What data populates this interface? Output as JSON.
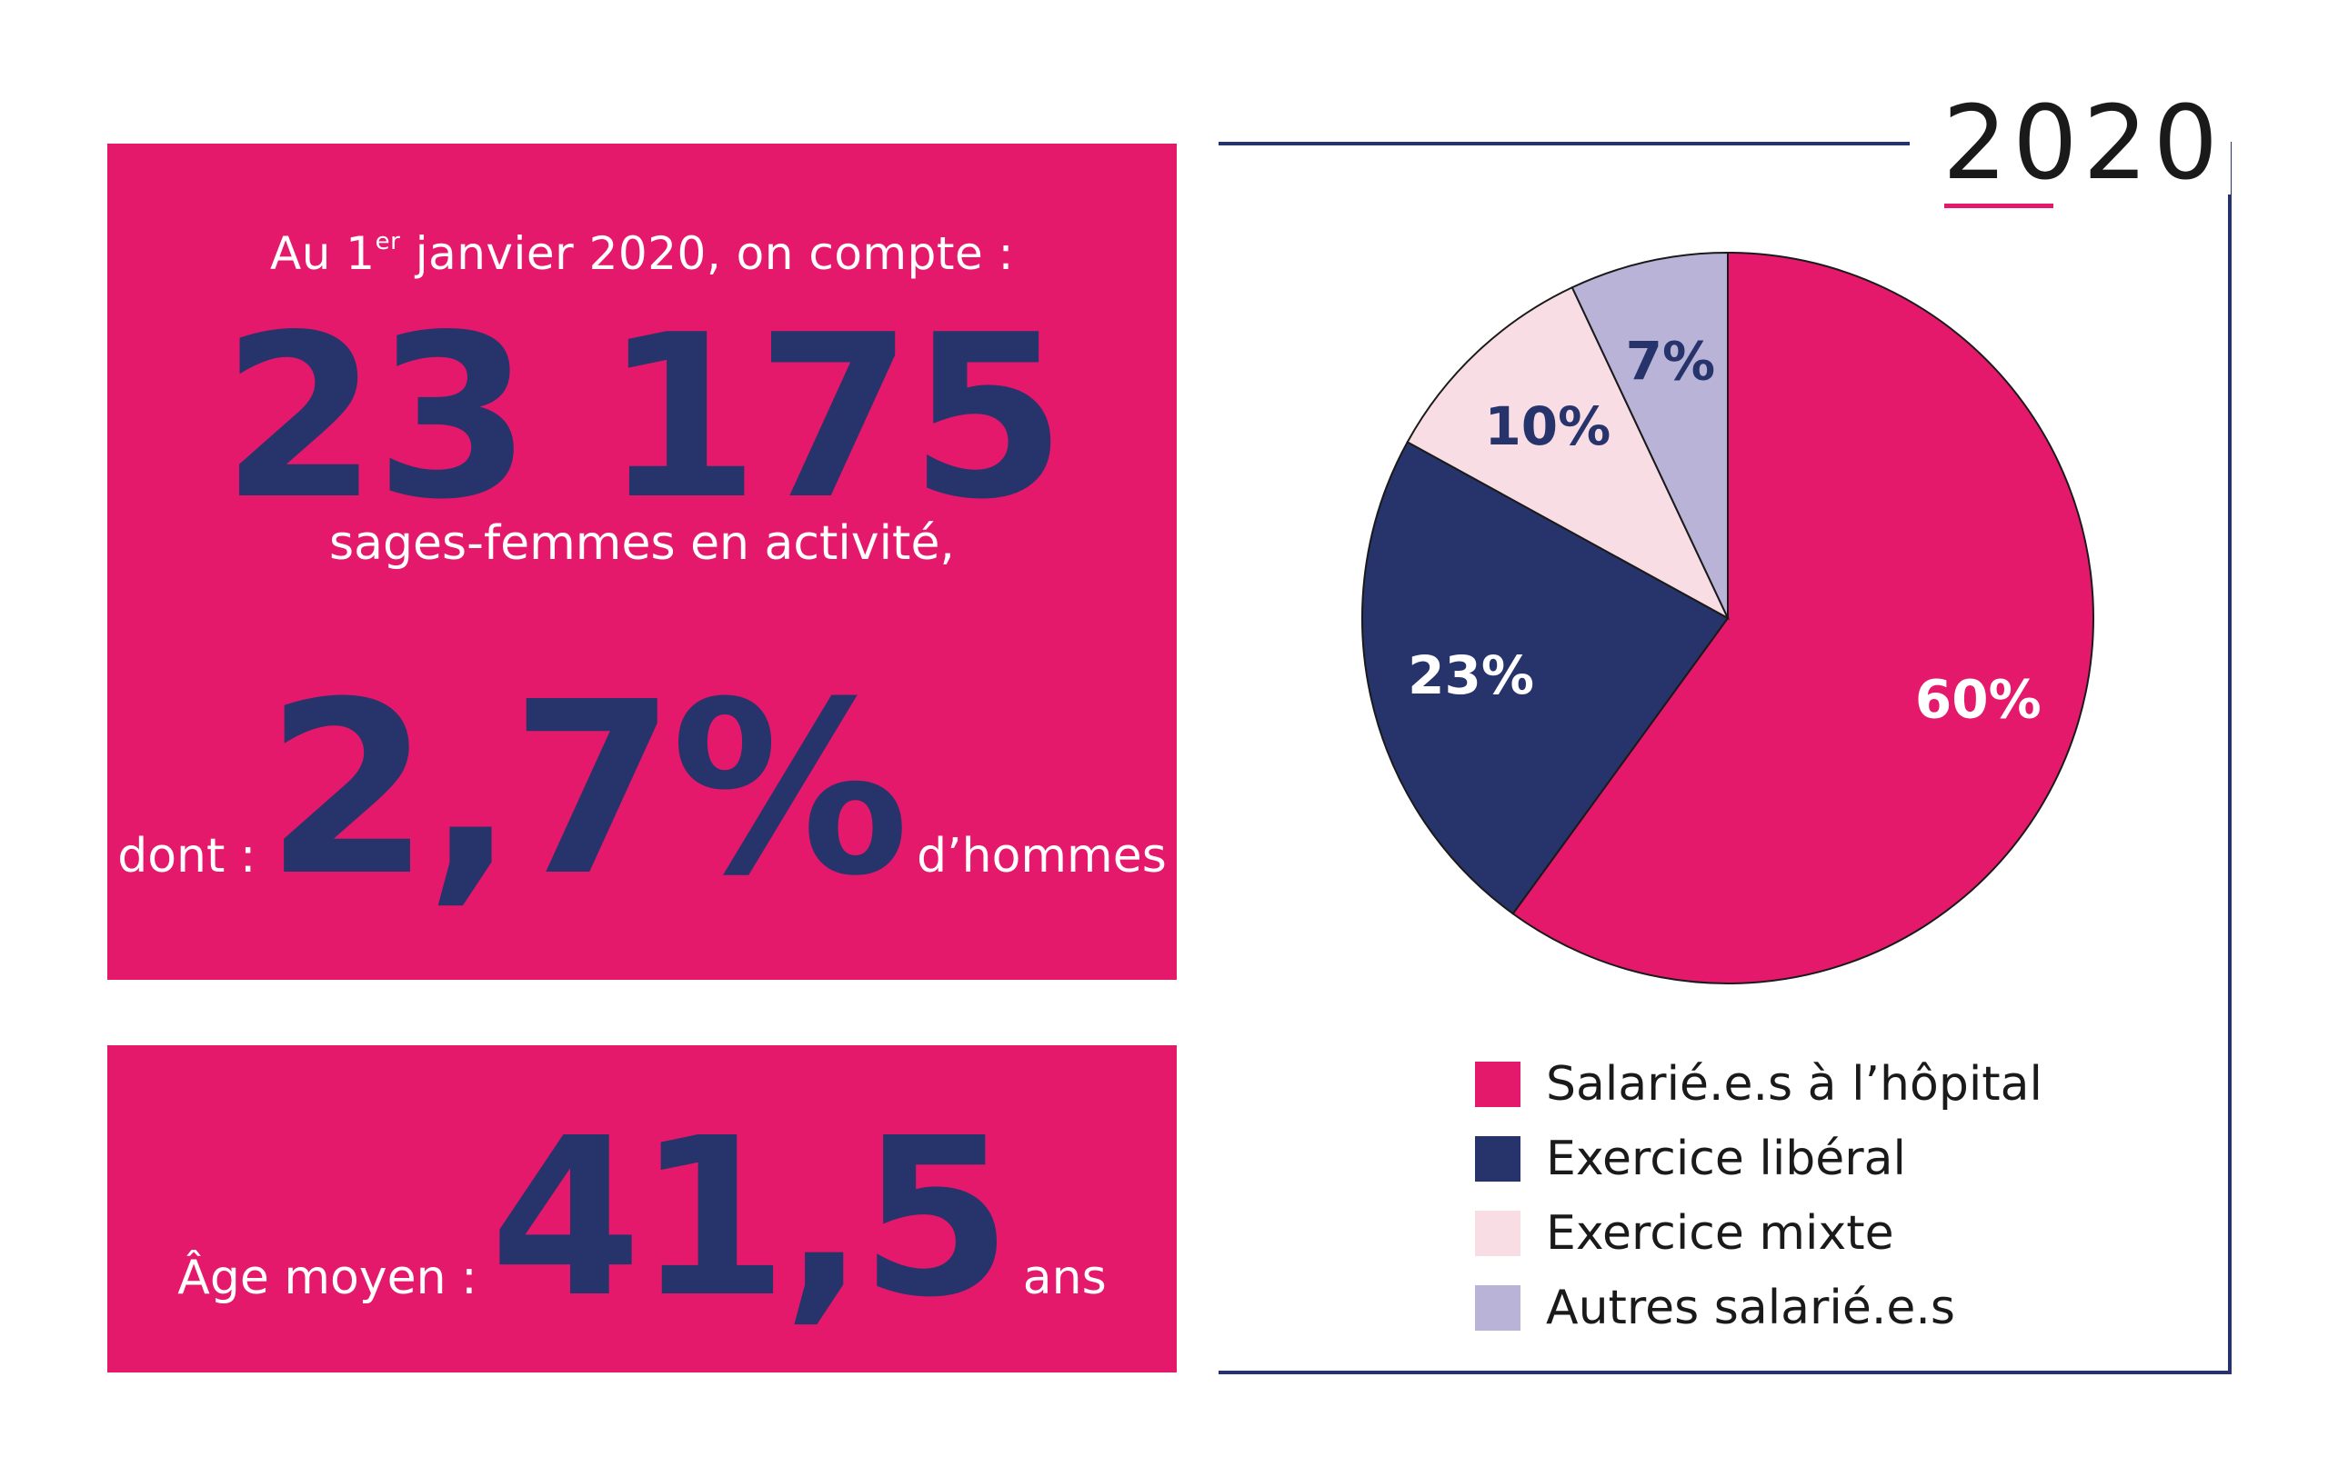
{
  "stats": {
    "intro_prefix": "Au 1",
    "intro_sup": "er",
    "intro_suffix": " janvier 2020, on compte :",
    "total_count": "23 175",
    "total_label": "sages-femmes en activité,",
    "men_prefix": "dont :",
    "men_share": "2,7%",
    "men_suffix": "d’hommes",
    "age_prefix": "Âge moyen :",
    "age_value": "41,5",
    "age_suffix": "ans"
  },
  "colors": {
    "accent_pink": "#e5196b",
    "navy": "#27336b",
    "light_pink": "#f8dde4",
    "lavender": "#b9b3d8"
  },
  "chart_data": {
    "type": "pie",
    "title": "2020",
    "categories": [
      "Salarié.e.s à l’hôpital",
      "Exercice libéral",
      "Exercice mixte",
      "Autres salarié.e.s"
    ],
    "values": [
      60,
      23,
      10,
      7
    ],
    "labels": [
      "60%",
      "23%",
      "10%",
      "7%"
    ],
    "colors": [
      "#e5196b",
      "#27336b",
      "#f8dde4",
      "#b9b3d8"
    ],
    "label_colors": [
      "#ffffff",
      "#ffffff",
      "#27336b",
      "#27336b"
    ],
    "legend_position": "bottom"
  }
}
